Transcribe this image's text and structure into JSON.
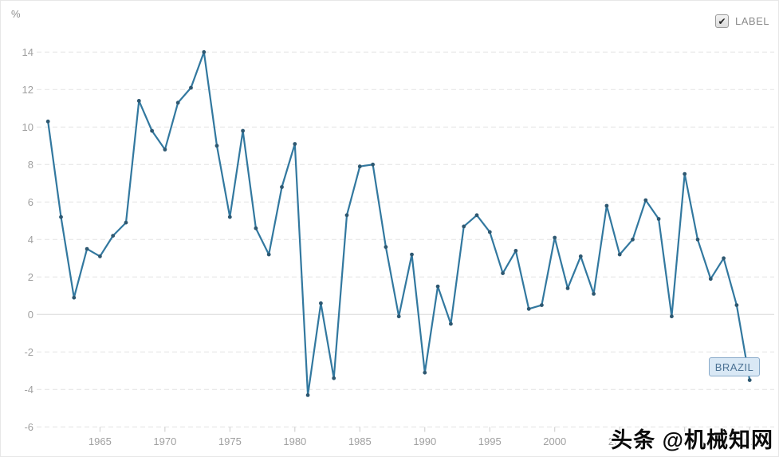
{
  "header": {
    "unit_label": "%",
    "label_checkbox": "LABEL",
    "checkbox_checked": true,
    "checkmark_glyph": "✔"
  },
  "series_label": {
    "text": "BRAZIL"
  },
  "watermark": {
    "text": "头条 @机械知网"
  },
  "chart_data": {
    "type": "line",
    "title": "",
    "xlabel": "",
    "ylabel": "%",
    "series_name": "BRAZIL",
    "x": [
      1961,
      1962,
      1963,
      1964,
      1965,
      1966,
      1967,
      1968,
      1969,
      1970,
      1971,
      1972,
      1973,
      1974,
      1975,
      1976,
      1977,
      1978,
      1979,
      1980,
      1981,
      1982,
      1983,
      1984,
      1985,
      1986,
      1987,
      1988,
      1989,
      1990,
      1991,
      1992,
      1993,
      1994,
      1995,
      1996,
      1997,
      1998,
      1999,
      2000,
      2001,
      2002,
      2003,
      2004,
      2005,
      2006,
      2007,
      2008,
      2009,
      2010,
      2011,
      2012,
      2013,
      2014,
      2015
    ],
    "values": [
      10.3,
      5.2,
      0.9,
      3.5,
      3.1,
      4.2,
      4.9,
      11.4,
      9.8,
      8.8,
      11.3,
      12.1,
      14.0,
      9.0,
      5.2,
      9.8,
      4.6,
      3.2,
      6.8,
      9.1,
      -4.3,
      0.6,
      -3.4,
      5.3,
      7.9,
      8.0,
      3.6,
      -0.1,
      3.2,
      -3.1,
      1.5,
      -0.5,
      4.7,
      5.3,
      4.4,
      2.2,
      3.4,
      0.3,
      0.5,
      4.1,
      1.4,
      3.1,
      1.1,
      5.8,
      3.2,
      4.0,
      6.1,
      5.1,
      -0.1,
      7.5,
      4.0,
      1.9,
      3.0,
      0.5,
      -3.5
    ],
    "ylim": [
      -6,
      14
    ],
    "yticks": [
      14,
      12,
      10,
      8,
      6,
      4,
      2,
      0,
      -2,
      -4,
      -6
    ],
    "xticks": [
      1965,
      1970,
      1975,
      1980,
      1985,
      1990,
      1995,
      2000,
      2005,
      2010,
      2015
    ],
    "grid": "horizontal dashed, solid zero line",
    "legend_position": "none",
    "marker": "dot",
    "colors": {
      "line": "#32789f",
      "point": "#2e5871",
      "grid": "#e4e4e4",
      "zero_line": "#d8d8d8",
      "tick_text": "#a0a0a0",
      "flag_bg": "#d9e8f5",
      "flag_border": "#8aabca",
      "flag_text": "#4b7193"
    }
  }
}
